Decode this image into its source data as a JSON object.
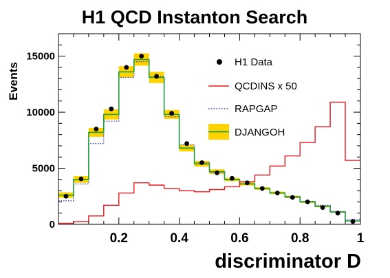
{
  "chart_data": {
    "type": "line",
    "title": "H1 QCD Instanton Search",
    "xlabel": "discriminator D",
    "ylabel": "Events",
    "xlim": [
      0,
      1
    ],
    "ylim": [
      0,
      17000
    ],
    "grid": false,
    "legend_position": "top-right",
    "x_ticks": [
      "0.2",
      "0.4",
      "0.6",
      "0.8",
      "1"
    ],
    "y_ticks": [
      "0",
      "5000",
      "10000",
      "15000"
    ],
    "bin_edges": [
      0,
      0.05,
      0.1,
      0.15,
      0.2,
      0.25,
      0.3,
      0.35,
      0.4,
      0.45,
      0.5,
      0.55,
      0.6,
      0.65,
      0.7,
      0.75,
      0.8,
      0.85,
      0.9,
      0.95,
      1.0
    ],
    "series": [
      {
        "name": "H1 Data",
        "style": "points",
        "color": "#000000",
        "x": [
          0.025,
          0.075,
          0.125,
          0.175,
          0.225,
          0.275,
          0.325,
          0.375,
          0.425,
          0.475,
          0.525,
          0.575,
          0.625,
          0.675,
          0.725,
          0.775,
          0.825,
          0.875,
          0.925,
          0.975
        ],
        "values": [
          2500,
          4050,
          8500,
          10300,
          14000,
          15000,
          13200,
          9900,
          7200,
          5500,
          4600,
          4100,
          3700,
          3200,
          2800,
          2400,
          2000,
          1500,
          1000,
          250
        ]
      },
      {
        "name": "QCDINS x 50",
        "style": "step",
        "color": "#e8171c",
        "values": [
          100,
          250,
          750,
          1700,
          2800,
          3700,
          3500,
          3200,
          3000,
          2900,
          3100,
          3350,
          3800,
          4400,
          5200,
          6100,
          7300,
          8700,
          10900,
          5700
        ]
      },
      {
        "name": "RAPGAP",
        "style": "dotted-step",
        "color": "#3838c8",
        "values": [
          2100,
          3600,
          7200,
          9200,
          13100,
          14500,
          13200,
          9600,
          7100,
          5500,
          4600,
          4000,
          3600,
          3200,
          2800,
          2400,
          2050,
          1700,
          1150,
          450
        ]
      },
      {
        "name": "DJANGOH",
        "style": "step-band",
        "color": "#1f9e3a",
        "band_color": "#ffd300",
        "values": [
          2600,
          4000,
          8200,
          9800,
          13600,
          14700,
          13100,
          9800,
          6800,
          5400,
          4700,
          4000,
          3600,
          3200,
          2800,
          2450,
          2000,
          1600,
          1100,
          300
        ],
        "band_halfwidth": [
          250,
          300,
          400,
          450,
          500,
          550,
          500,
          400,
          300,
          250,
          200,
          150,
          140,
          120,
          110,
          100,
          90,
          80,
          60,
          40
        ]
      }
    ]
  }
}
